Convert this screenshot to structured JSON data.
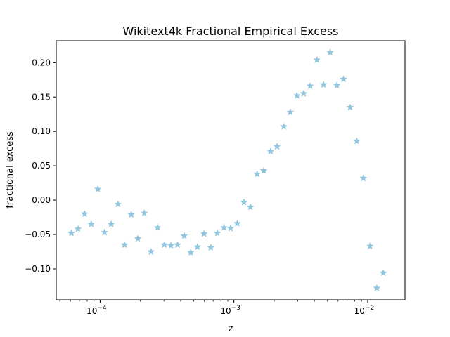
{
  "chart_data": {
    "type": "scatter",
    "title": "Wikitext4k Fractional Empirical Excess",
    "xlabel": "z",
    "ylabel": "fractional excess",
    "xscale": "log",
    "xlim": [
      4.7e-05,
      0.019
    ],
    "ylim": [
      -0.145,
      0.232
    ],
    "grid": false,
    "marker": "star",
    "marker_color": "#92c5de",
    "x_major_ticks": [
      {
        "value": 0.0001,
        "base": "10",
        "exp": "−4"
      },
      {
        "value": 0.001,
        "base": "10",
        "exp": "−3"
      },
      {
        "value": 0.01,
        "base": "10",
        "exp": "−2"
      }
    ],
    "y_ticks": [
      {
        "value": -0.1,
        "label": "−0.10"
      },
      {
        "value": -0.05,
        "label": "−0.05"
      },
      {
        "value": 0.0,
        "label": "0.00"
      },
      {
        "value": 0.05,
        "label": "0.05"
      },
      {
        "value": 0.1,
        "label": "0.10"
      },
      {
        "value": 0.15,
        "label": "0.15"
      },
      {
        "value": 0.2,
        "label": "0.20"
      }
    ],
    "points": [
      {
        "x": 6.1e-05,
        "y": -0.048
      },
      {
        "x": 6.83e-05,
        "y": -0.042
      },
      {
        "x": 7.66e-05,
        "y": -0.02
      },
      {
        "x": 8.58e-05,
        "y": -0.035
      },
      {
        "x": 9.61e-05,
        "y": 0.016
      },
      {
        "x": 0.000108,
        "y": -0.047
      },
      {
        "x": 0.000121,
        "y": -0.035
      },
      {
        "x": 0.000136,
        "y": -0.006
      },
      {
        "x": 0.000152,
        "y": -0.065
      },
      {
        "x": 0.000171,
        "y": -0.021
      },
      {
        "x": 0.000191,
        "y": -0.056
      },
      {
        "x": 0.000214,
        "y": -0.019
      },
      {
        "x": 0.00024,
        "y": -0.075
      },
      {
        "x": 0.000269,
        "y": -0.04
      },
      {
        "x": 0.000302,
        "y": -0.065
      },
      {
        "x": 0.000338,
        "y": -0.066
      },
      {
        "x": 0.000379,
        "y": -0.065
      },
      {
        "x": 0.000425,
        "y": -0.052
      },
      {
        "x": 0.000476,
        "y": -0.076
      },
      {
        "x": 0.000534,
        "y": -0.068
      },
      {
        "x": 0.000598,
        "y": -0.049
      },
      {
        "x": 0.000671,
        "y": -0.069
      },
      {
        "x": 0.000752,
        "y": -0.048
      },
      {
        "x": 0.000843,
        "y": -0.04
      },
      {
        "x": 0.000945,
        "y": -0.041
      },
      {
        "x": 0.00106,
        "y": -0.034
      },
      {
        "x": 0.00119,
        "y": -0.003
      },
      {
        "x": 0.00133,
        "y": -0.01
      },
      {
        "x": 0.00149,
        "y": 0.038
      },
      {
        "x": 0.00167,
        "y": 0.043
      },
      {
        "x": 0.00188,
        "y": 0.071
      },
      {
        "x": 0.0021,
        "y": 0.078
      },
      {
        "x": 0.00236,
        "y": 0.107
      },
      {
        "x": 0.00264,
        "y": 0.128
      },
      {
        "x": 0.00296,
        "y": 0.152
      },
      {
        "x": 0.00332,
        "y": 0.155
      },
      {
        "x": 0.00372,
        "y": 0.166
      },
      {
        "x": 0.00417,
        "y": 0.204
      },
      {
        "x": 0.00468,
        "y": 0.168
      },
      {
        "x": 0.00524,
        "y": 0.215
      },
      {
        "x": 0.00588,
        "y": 0.167
      },
      {
        "x": 0.00659,
        "y": 0.176
      },
      {
        "x": 0.00739,
        "y": 0.135
      },
      {
        "x": 0.00828,
        "y": 0.086
      },
      {
        "x": 0.00928,
        "y": 0.032
      },
      {
        "x": 0.0104,
        "y": -0.067
      },
      {
        "x": 0.0117,
        "y": -0.128
      },
      {
        "x": 0.0131,
        "y": -0.106
      }
    ]
  }
}
